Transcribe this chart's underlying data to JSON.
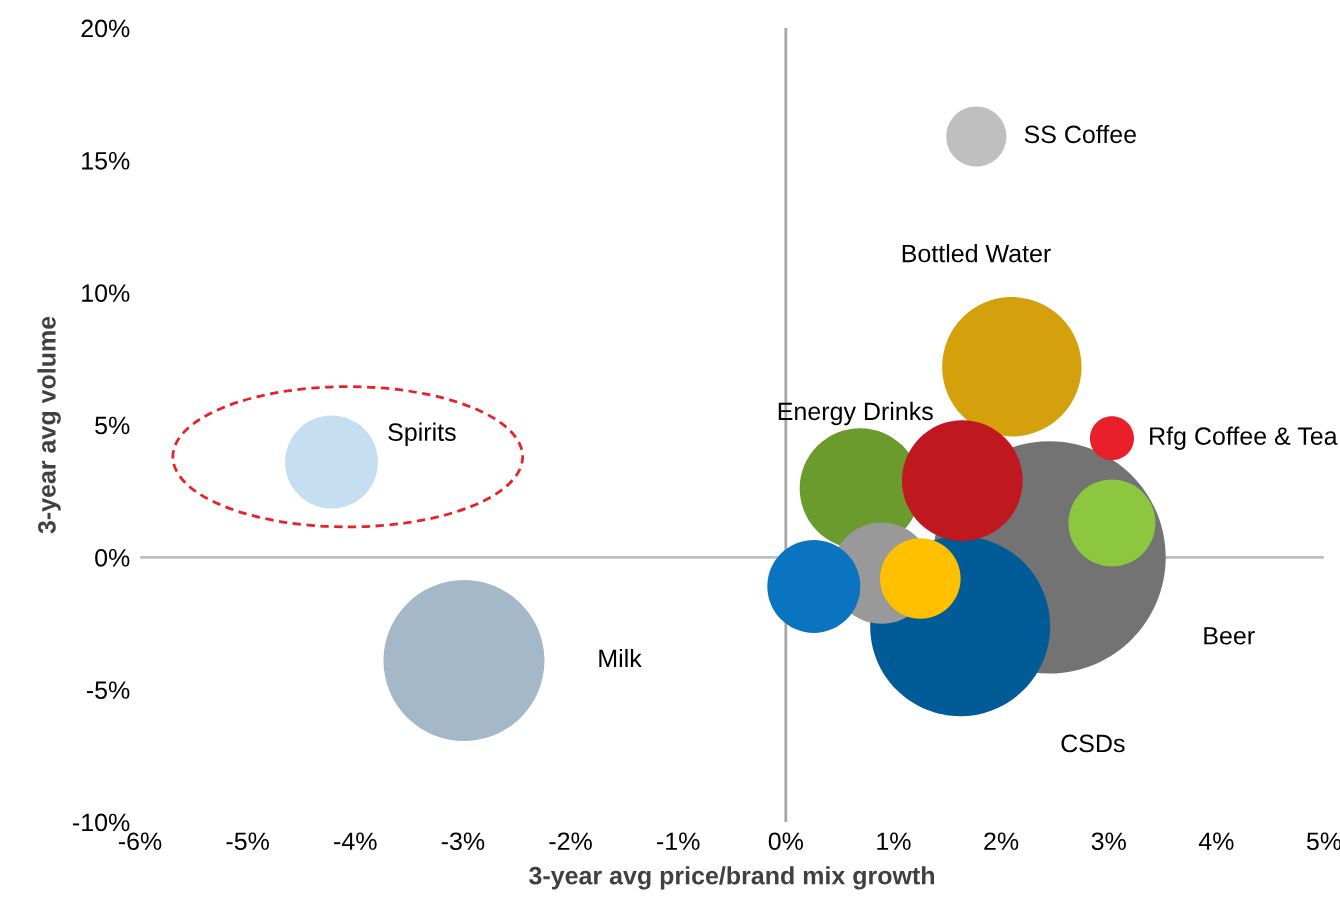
{
  "chart_data": {
    "type": "bubble",
    "xlabel": "3-year avg price/brand mix growth",
    "ylabel": "3-year avg volume",
    "series": [
      {
        "name": "SS Coffee",
        "color": "#bfbfbf",
        "x": [
          1.77
        ],
        "values": [
          15.9
        ],
        "sizes": [
          0.067
        ]
      },
      {
        "name": "Bottled Water",
        "color": "#d4a00b",
        "x": [
          2.1
        ],
        "values": [
          7.2
        ],
        "sizes": [
          0.36
        ]
      },
      {
        "name": "Rfg Coffee & Tea",
        "color": "#e8202a",
        "x": [
          3.03
        ],
        "values": [
          4.5
        ],
        "sizes": [
          0.036
        ]
      },
      {
        "name": "Energy Drinks",
        "color": "#6b9b2d",
        "x": [
          0.69
        ],
        "values": [
          2.6
        ],
        "sizes": [
          0.27
        ]
      },
      {
        "color": "#c0181f",
        "x": [
          1.64
        ],
        "values": [
          2.9
        ],
        "sizes": [
          0.27
        ]
      },
      {
        "name": "Beer",
        "color": "#737373",
        "x": [
          2.45
        ],
        "values": [
          0.0
        ],
        "sizes": [
          1
        ]
      },
      {
        "color": "#8dc63f",
        "x": [
          3.03
        ],
        "values": [
          1.3
        ],
        "sizes": [
          0.14
        ]
      },
      {
        "color": "#999999",
        "x": [
          0.89
        ],
        "values": [
          -0.6
        ],
        "sizes": [
          0.19
        ]
      },
      {
        "color": "#0a74c0",
        "x": [
          0.26
        ],
        "values": [
          -1.1
        ],
        "sizes": [
          0.16
        ]
      },
      {
        "color": "#ffc000",
        "x": [
          1.25
        ],
        "values": [
          -0.8
        ],
        "sizes": [
          0.12
        ]
      },
      {
        "name": "CSDs",
        "color": "#005b96",
        "x": [
          1.62
        ],
        "values": [
          -2.6
        ],
        "sizes": [
          0.6
        ]
      },
      {
        "name": "Spirits",
        "color": "#c5dff0",
        "x": [
          -4.22
        ],
        "values": [
          3.6
        ],
        "sizes": [
          0.16
        ]
      },
      {
        "name": "Milk",
        "color": "#a5b8c8",
        "x": [
          -2.99
        ],
        "values": [
          -3.9
        ],
        "sizes": [
          0.48
        ]
      }
    ],
    "xlim": [
      -6,
      5
    ],
    "ylim": [
      -10,
      20
    ],
    "xticks": [
      {
        "value": -6,
        "label": "-6%"
      },
      {
        "value": -5,
        "label": "-5%"
      },
      {
        "value": -4,
        "label": "-4%"
      },
      {
        "value": -3,
        "label": "-3%"
      },
      {
        "value": -2,
        "label": "-2%"
      },
      {
        "value": -1,
        "label": "-1%"
      },
      {
        "value": 0,
        "label": "0%"
      },
      {
        "value": 1,
        "label": "1%"
      },
      {
        "value": 2,
        "label": "2%"
      },
      {
        "value": 3,
        "label": "3%"
      },
      {
        "value": 4,
        "label": "4%"
      },
      {
        "value": 5,
        "label": "5%"
      }
    ],
    "yticks": [
      {
        "value": -10,
        "label": "-10%"
      },
      {
        "value": -5,
        "label": "-5%"
      },
      {
        "value": 0,
        "label": "0%"
      },
      {
        "value": 5,
        "label": "5%"
      },
      {
        "value": 10,
        "label": "10%"
      },
      {
        "value": 15,
        "label": "15%"
      },
      {
        "value": 20,
        "label": "20%"
      }
    ],
    "ref_lines": [
      {
        "axis": "x",
        "value": 0,
        "color": "#a6a6a6"
      },
      {
        "axis": "y",
        "value": 0,
        "color": "#bfbfbf"
      }
    ],
    "grid": false,
    "legend": false
  }
}
